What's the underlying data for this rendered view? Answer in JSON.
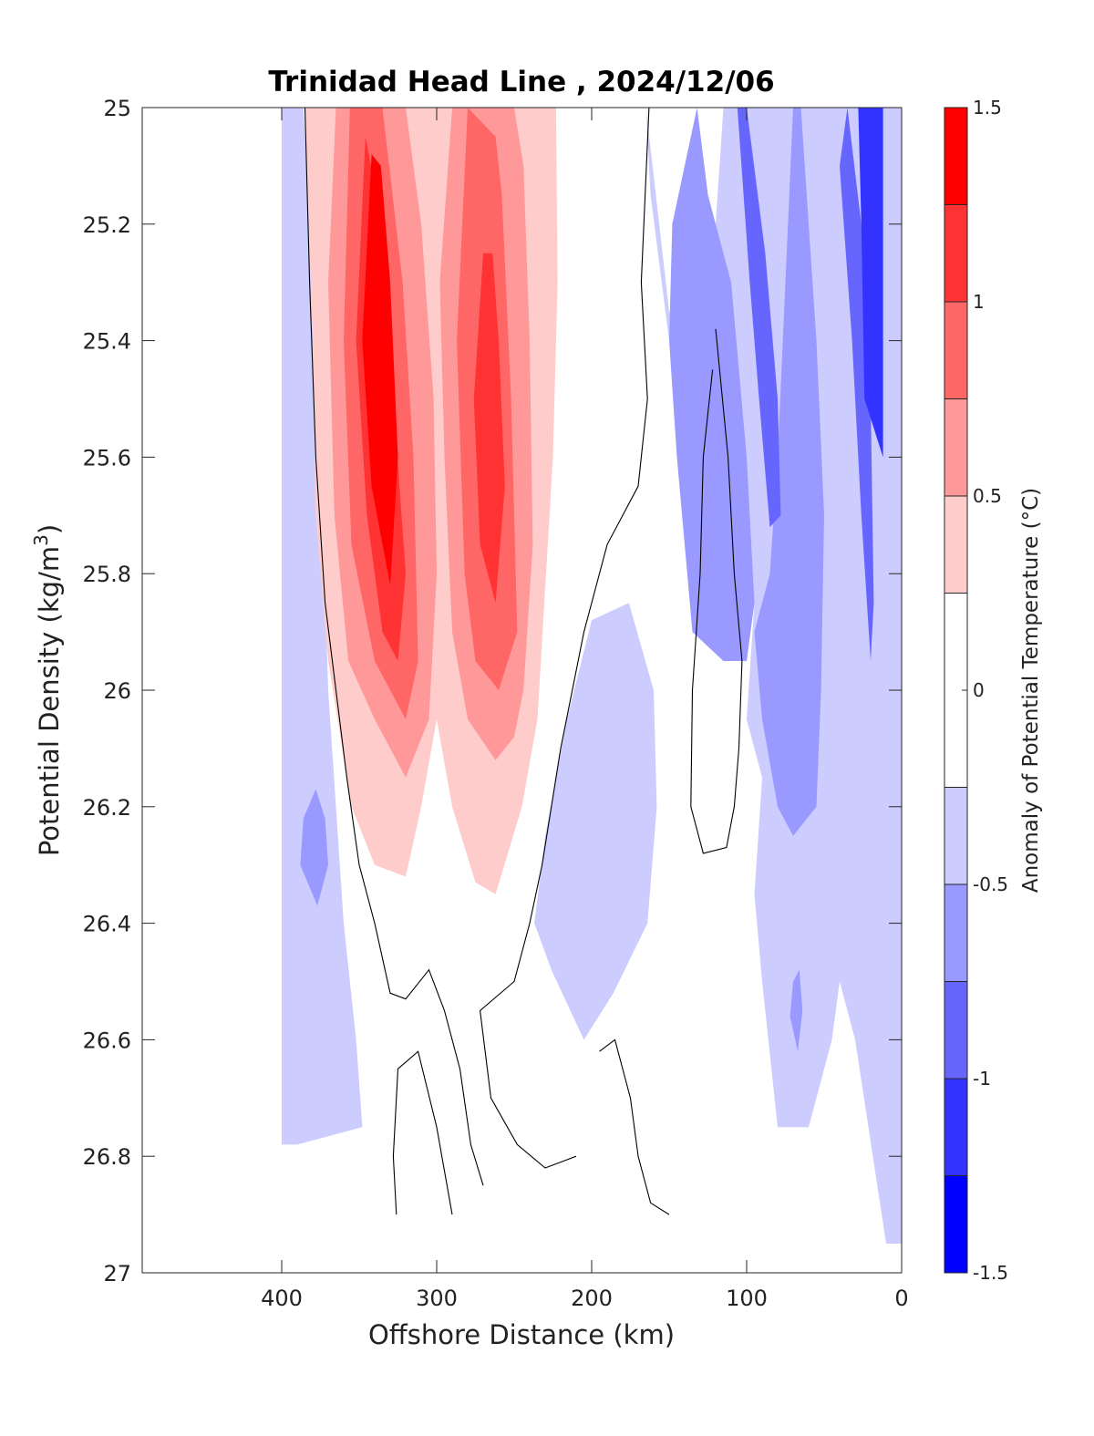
{
  "chart_data": {
    "type": "contourf",
    "title": "Trinidad Head Line , 2024/12/06",
    "xlabel": "Offshore Distance (km)",
    "ylabel_main": "Potential Density (kg/m",
    "ylabel_sup": "3",
    "ylabel_close": ")",
    "x_reversed": true,
    "y_reversed": true,
    "xlim": [
      0,
      490
    ],
    "ylim": [
      25,
      27
    ],
    "xticks": [
      400,
      300,
      200,
      100,
      0
    ],
    "yticks": [
      25,
      25.2,
      25.4,
      25.6,
      25.8,
      26,
      26.2,
      26.4,
      26.6,
      26.8,
      27
    ],
    "colorbar": {
      "label": "Anomaly of Potential Temperature (°C)",
      "limits": [
        -1.5,
        1.5
      ],
      "ticks": [
        1.5,
        1,
        0.5,
        0,
        -0.5,
        -1,
        -1.5
      ],
      "levels": [
        {
          "from": 1.25,
          "to": 1.5,
          "color": "#ff0000"
        },
        {
          "from": 1.0,
          "to": 1.25,
          "color": "#ff3333"
        },
        {
          "from": 0.75,
          "to": 1.0,
          "color": "#ff6666"
        },
        {
          "from": 0.5,
          "to": 0.75,
          "color": "#ff9999"
        },
        {
          "from": 0.25,
          "to": 0.5,
          "color": "#ffcccc"
        },
        {
          "from": -0.25,
          "to": 0.25,
          "color": "#ffffff"
        },
        {
          "from": -0.5,
          "to": -0.25,
          "color": "#ccccff"
        },
        {
          "from": -0.75,
          "to": -0.5,
          "color": "#9999ff"
        },
        {
          "from": -1.0,
          "to": -0.75,
          "color": "#6666ff"
        },
        {
          "from": -1.25,
          "to": -1.0,
          "color": "#3333ff"
        },
        {
          "from": -1.5,
          "to": -1.25,
          "color": "#0000ff"
        }
      ]
    },
    "regions": [
      {
        "name": "cool-light-left",
        "color": "#ccccff",
        "points": [
          [
            400,
            25.0
          ],
          [
            386,
            25.0
          ],
          [
            376,
            25.5
          ],
          [
            370,
            26.0
          ],
          [
            360,
            26.4
          ],
          [
            352,
            26.6
          ],
          [
            348,
            26.75
          ],
          [
            390,
            26.78
          ],
          [
            400,
            26.78
          ]
        ]
      },
      {
        "name": "cool-light-mid",
        "color": "#ccccff",
        "points": [
          [
            176,
            25.85
          ],
          [
            160,
            26.0
          ],
          [
            158,
            26.2
          ],
          [
            164,
            26.4
          ],
          [
            186,
            26.52
          ],
          [
            205,
            26.6
          ],
          [
            226,
            26.48
          ],
          [
            237,
            26.4
          ],
          [
            230,
            26.25
          ],
          [
            216,
            26.05
          ],
          [
            200,
            25.88
          ]
        ]
      },
      {
        "name": "cool-light-east",
        "color": "#ccccff",
        "points": [
          [
            165,
            25.0
          ],
          [
            162,
            25.15
          ],
          [
            150,
            25.4
          ],
          [
            138,
            25.42
          ],
          [
            120,
            25.2
          ],
          [
            115,
            25.0
          ],
          [
            0,
            25.0
          ],
          [
            0,
            26.95
          ],
          [
            10,
            26.95
          ],
          [
            30,
            26.6
          ],
          [
            40,
            26.5
          ],
          [
            45,
            26.6
          ],
          [
            60,
            26.75
          ],
          [
            80,
            26.75
          ],
          [
            90,
            26.5
          ],
          [
            95,
            26.35
          ],
          [
            90,
            26.15
          ],
          [
            100,
            26.05
          ],
          [
            95,
            25.85
          ],
          [
            110,
            25.65
          ],
          [
            118,
            25.5
          ],
          [
            135,
            25.4
          ],
          [
            150,
            25.35
          ]
        ]
      },
      {
        "name": "cool-med-east",
        "color": "#9999ff",
        "points": [
          [
            132,
            25.0
          ],
          [
            125,
            25.15
          ],
          [
            110,
            25.3
          ],
          [
            100,
            25.6
          ],
          [
            95,
            25.85
          ],
          [
            100,
            25.95
          ],
          [
            115,
            25.95
          ],
          [
            135,
            25.9
          ],
          [
            145,
            25.6
          ],
          [
            150,
            25.4
          ],
          [
            148,
            25.2
          ]
        ]
      },
      {
        "name": "cool-med-nearshore",
        "color": "#9999ff",
        "points": [
          [
            65,
            25.0
          ],
          [
            55,
            25.4
          ],
          [
            50,
            25.7
          ],
          [
            52,
            26.0
          ],
          [
            55,
            26.2
          ],
          [
            70,
            26.25
          ],
          [
            80,
            26.2
          ],
          [
            90,
            26.05
          ],
          [
            95,
            25.9
          ],
          [
            85,
            25.8
          ],
          [
            80,
            25.6
          ],
          [
            75,
            25.3
          ],
          [
            70,
            25.0
          ]
        ]
      },
      {
        "name": "cool-dark-nearshore",
        "color": "#6666ff",
        "points": [
          [
            100,
            25.0
          ],
          [
            88,
            25.25
          ],
          [
            80,
            25.5
          ],
          [
            78,
            25.7
          ],
          [
            85,
            25.72
          ],
          [
            92,
            25.5
          ],
          [
            98,
            25.3
          ],
          [
            106,
            25.0
          ]
        ]
      },
      {
        "name": "cool-dark-coast",
        "color": "#6666ff",
        "points": [
          [
            35,
            25.0
          ],
          [
            26,
            25.2
          ],
          [
            20,
            25.5
          ],
          [
            18,
            25.85
          ],
          [
            20,
            25.95
          ],
          [
            26,
            25.7
          ],
          [
            32,
            25.4
          ],
          [
            40,
            25.1
          ]
        ]
      },
      {
        "name": "cool-blue-coast",
        "color": "#3333ff",
        "points": [
          [
            12,
            25.0
          ],
          [
            12,
            25.6
          ],
          [
            24,
            25.5
          ],
          [
            26,
            25.2
          ],
          [
            28,
            25.0
          ]
        ]
      },
      {
        "name": "cool-patch-left",
        "color": "#9999ff",
        "points": [
          [
            378,
            26.17
          ],
          [
            386,
            26.22
          ],
          [
            388,
            26.3
          ],
          [
            377,
            26.37
          ],
          [
            370,
            26.3
          ],
          [
            372,
            26.22
          ]
        ]
      },
      {
        "name": "cool-patch-east",
        "color": "#9999ff",
        "points": [
          [
            66,
            26.48
          ],
          [
            64,
            26.55
          ],
          [
            67,
            26.62
          ],
          [
            72,
            26.56
          ],
          [
            70,
            26.5
          ]
        ]
      },
      {
        "name": "warm-outer",
        "color": "#ffcccc",
        "points": [
          [
            385,
            25.0
          ],
          [
            380,
            25.4
          ],
          [
            378,
            25.7
          ],
          [
            370,
            25.95
          ],
          [
            355,
            26.2
          ],
          [
            340,
            26.3
          ],
          [
            320,
            26.32
          ],
          [
            310,
            26.2
          ],
          [
            300,
            26.05
          ],
          [
            290,
            26.2
          ],
          [
            275,
            26.33
          ],
          [
            262,
            26.35
          ],
          [
            245,
            26.2
          ],
          [
            235,
            26.05
          ],
          [
            225,
            25.6
          ],
          [
            222,
            25.3
          ],
          [
            223,
            25.0
          ],
          [
            325,
            25.0
          ],
          [
            320,
            25.1
          ],
          [
            300,
            25.25
          ],
          [
            285,
            25.2
          ],
          [
            275,
            25.0
          ]
        ]
      },
      {
        "name": "warm-mid-west",
        "color": "#ff9999",
        "points": [
          [
            365,
            25.0
          ],
          [
            370,
            25.3
          ],
          [
            366,
            25.7
          ],
          [
            357,
            25.95
          ],
          [
            340,
            26.05
          ],
          [
            320,
            26.15
          ],
          [
            305,
            26.05
          ],
          [
            300,
            25.8
          ],
          [
            302,
            25.5
          ],
          [
            310,
            25.2
          ],
          [
            320,
            25.0
          ]
        ]
      },
      {
        "name": "warm-mid-east",
        "color": "#ff9999",
        "points": [
          [
            290,
            25.0
          ],
          [
            298,
            25.3
          ],
          [
            295,
            25.6
          ],
          [
            290,
            25.9
          ],
          [
            280,
            26.05
          ],
          [
            262,
            26.12
          ],
          [
            250,
            26.08
          ],
          [
            244,
            26.0
          ],
          [
            238,
            25.75
          ],
          [
            240,
            25.4
          ],
          [
            244,
            25.1
          ],
          [
            250,
            25.0
          ]
        ]
      },
      {
        "name": "warm-strong-west",
        "color": "#ff6666",
        "points": [
          [
            356,
            25.0
          ],
          [
            360,
            25.4
          ],
          [
            355,
            25.75
          ],
          [
            340,
            25.95
          ],
          [
            320,
            26.05
          ],
          [
            312,
            25.95
          ],
          [
            315,
            25.6
          ],
          [
            322,
            25.3
          ],
          [
            335,
            25.0
          ]
        ]
      },
      {
        "name": "warm-strong-east",
        "color": "#ff6666",
        "points": [
          [
            280,
            25.0
          ],
          [
            287,
            25.4
          ],
          [
            282,
            25.8
          ],
          [
            275,
            25.95
          ],
          [
            260,
            26.0
          ],
          [
            248,
            25.9
          ],
          [
            252,
            25.5
          ],
          [
            258,
            25.15
          ],
          [
            262,
            25.05
          ]
        ]
      },
      {
        "name": "warm-hot-west",
        "color": "#ff3333",
        "points": [
          [
            346,
            25.05
          ],
          [
            352,
            25.4
          ],
          [
            345,
            25.7
          ],
          [
            335,
            25.9
          ],
          [
            325,
            25.95
          ],
          [
            320,
            25.8
          ],
          [
            328,
            25.5
          ],
          [
            335,
            25.2
          ]
        ]
      },
      {
        "name": "warm-hot-east",
        "color": "#ff3333",
        "points": [
          [
            270,
            25.25
          ],
          [
            276,
            25.5
          ],
          [
            272,
            25.75
          ],
          [
            262,
            25.85
          ],
          [
            256,
            25.65
          ],
          [
            260,
            25.4
          ],
          [
            264,
            25.25
          ]
        ]
      },
      {
        "name": "warm-max-west",
        "color": "#ff0000",
        "points": [
          [
            342,
            25.08
          ],
          [
            348,
            25.4
          ],
          [
            342,
            25.65
          ],
          [
            330,
            25.82
          ],
          [
            325,
            25.6
          ],
          [
            330,
            25.3
          ],
          [
            336,
            25.1
          ]
        ]
      }
    ],
    "contour_lines": [
      [
        [
          385,
          25.0
        ],
        [
          382,
          25.3
        ],
        [
          378,
          25.6
        ],
        [
          372,
          25.85
        ],
        [
          365,
          26.0
        ],
        [
          358,
          26.15
        ],
        [
          350,
          26.3
        ],
        [
          340,
          26.4
        ],
        [
          330,
          26.52
        ],
        [
          320,
          26.53
        ],
        [
          305,
          26.48
        ],
        [
          295,
          26.55
        ],
        [
          285,
          26.65
        ],
        [
          278,
          26.78
        ],
        [
          270,
          26.85
        ]
      ],
      [
        [
          163,
          25.0
        ],
        [
          168,
          25.3
        ],
        [
          164,
          25.5
        ],
        [
          170,
          25.65
        ],
        [
          190,
          25.75
        ],
        [
          205,
          25.9
        ],
        [
          220,
          26.1
        ],
        [
          232,
          26.3
        ],
        [
          240,
          26.4
        ],
        [
          250,
          26.5
        ],
        [
          272,
          26.55
        ],
        [
          265,
          26.7
        ],
        [
          248,
          26.78
        ],
        [
          230,
          26.82
        ],
        [
          210,
          26.8
        ]
      ],
      [
        [
          120,
          25.38
        ],
        [
          112,
          25.6
        ],
        [
          108,
          25.8
        ],
        [
          103,
          25.95
        ],
        [
          105,
          26.1
        ],
        [
          108,
          26.2
        ],
        [
          113,
          26.27
        ],
        [
          128,
          26.28
        ],
        [
          136,
          26.2
        ],
        [
          135,
          26.0
        ],
        [
          130,
          25.8
        ],
        [
          128,
          25.6
        ],
        [
          122,
          25.45
        ]
      ],
      [
        [
          326,
          26.9
        ],
        [
          328,
          26.8
        ],
        [
          325,
          26.65
        ],
        [
          312,
          26.62
        ],
        [
          300,
          26.75
        ],
        [
          290,
          26.9
        ]
      ],
      [
        [
          195,
          26.62
        ],
        [
          185,
          26.6
        ],
        [
          175,
          26.7
        ],
        [
          170,
          26.8
        ],
        [
          162,
          26.88
        ],
        [
          150,
          26.9
        ]
      ]
    ]
  }
}
